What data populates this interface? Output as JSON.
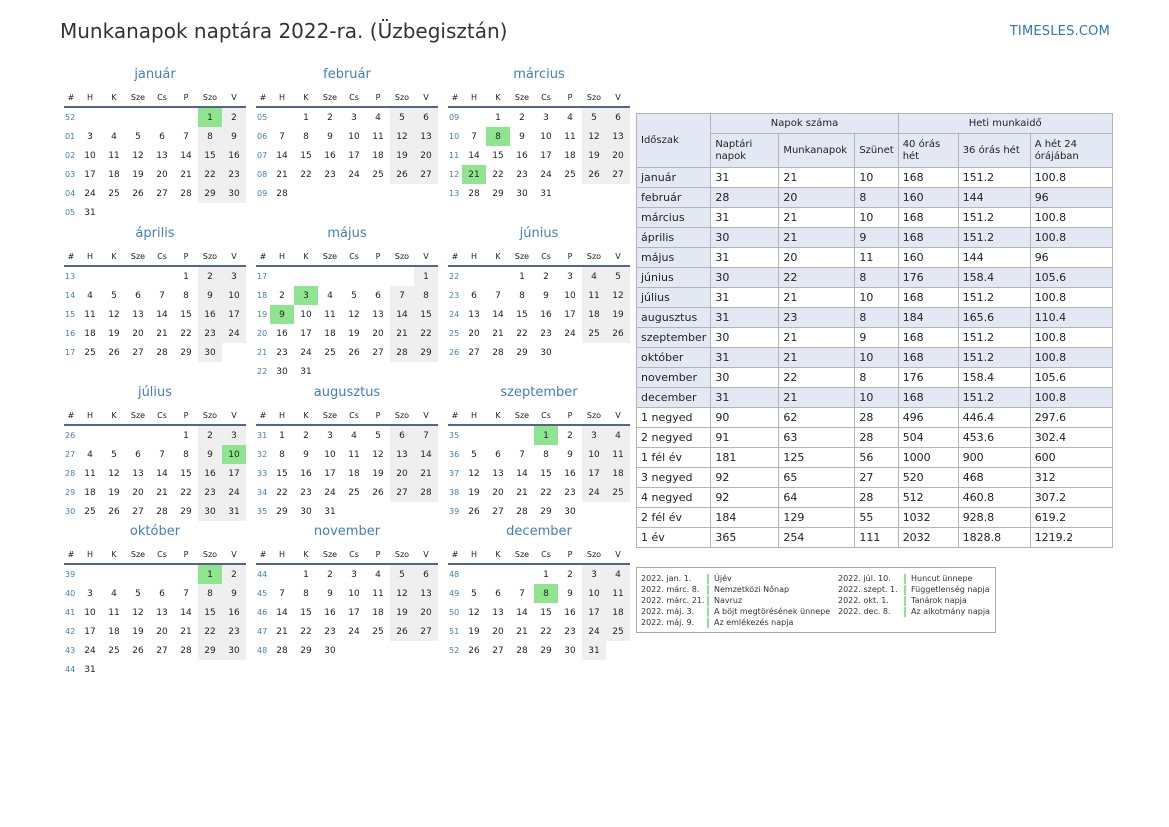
{
  "header": {
    "title": "Munkanapok naptára 2022-ra. (Üzbegisztán)",
    "brand": "TIMESLES.COM"
  },
  "weekday_headers": [
    "#",
    "H",
    "K",
    "Sze",
    "Cs",
    "P",
    "Szo",
    "V"
  ],
  "months": [
    {
      "name": "január",
      "weeks": [
        "52",
        "01",
        "02",
        "03",
        "04",
        "05"
      ],
      "first": 5,
      "days": 31,
      "holidays": [
        1
      ]
    },
    {
      "name": "február",
      "weeks": [
        "05",
        "06",
        "07",
        "08",
        "09"
      ],
      "first": 1,
      "days": 28,
      "holidays": []
    },
    {
      "name": "március",
      "weeks": [
        "09",
        "10",
        "11",
        "12",
        "13"
      ],
      "first": 1,
      "days": 31,
      "holidays": [
        8,
        21
      ]
    },
    {
      "name": "április",
      "weeks": [
        "13",
        "14",
        "15",
        "16",
        "17"
      ],
      "first": 4,
      "days": 30,
      "holidays": []
    },
    {
      "name": "május",
      "weeks": [
        "17",
        "18",
        "19",
        "20",
        "21",
        "22"
      ],
      "first": 6,
      "days": 31,
      "holidays": [
        3,
        9
      ]
    },
    {
      "name": "június",
      "weeks": [
        "22",
        "23",
        "24",
        "25",
        "26"
      ],
      "first": 2,
      "days": 30,
      "holidays": []
    },
    {
      "name": "július",
      "weeks": [
        "26",
        "27",
        "28",
        "29",
        "30"
      ],
      "first": 4,
      "days": 31,
      "holidays": [
        10
      ]
    },
    {
      "name": "augusztus",
      "weeks": [
        "31",
        "32",
        "33",
        "34",
        "35"
      ],
      "first": 0,
      "days": 31,
      "holidays": []
    },
    {
      "name": "szeptember",
      "weeks": [
        "35",
        "36",
        "37",
        "38",
        "39"
      ],
      "first": 3,
      "days": 30,
      "holidays": [
        1
      ]
    },
    {
      "name": "október",
      "weeks": [
        "39",
        "40",
        "41",
        "42",
        "43",
        "44"
      ],
      "first": 5,
      "days": 31,
      "holidays": [
        1
      ]
    },
    {
      "name": "november",
      "weeks": [
        "44",
        "45",
        "46",
        "47",
        "48"
      ],
      "first": 1,
      "days": 30,
      "holidays": []
    },
    {
      "name": "december",
      "weeks": [
        "48",
        "49",
        "50",
        "51",
        "52"
      ],
      "first": 3,
      "days": 31,
      "holidays": [
        8
      ]
    }
  ],
  "stats": {
    "period_label": "Időszak",
    "group_days": "Napok száma",
    "group_hours": "Heti munkaidő",
    "columns": [
      "Naptári napok",
      "Munkanapok",
      "Szünet",
      "40 órás hét",
      "36 órás hét",
      "A hét 24 órájában"
    ],
    "rows": [
      [
        "január",
        "31",
        "21",
        "10",
        "168",
        "151.2",
        "100.8"
      ],
      [
        "február",
        "28",
        "20",
        "8",
        "160",
        "144",
        "96"
      ],
      [
        "március",
        "31",
        "21",
        "10",
        "168",
        "151.2",
        "100.8"
      ],
      [
        "április",
        "30",
        "21",
        "9",
        "168",
        "151.2",
        "100.8"
      ],
      [
        "május",
        "31",
        "20",
        "11",
        "160",
        "144",
        "96"
      ],
      [
        "június",
        "30",
        "22",
        "8",
        "176",
        "158.4",
        "105.6"
      ],
      [
        "július",
        "31",
        "21",
        "10",
        "168",
        "151.2",
        "100.8"
      ],
      [
        "augusztus",
        "31",
        "23",
        "8",
        "184",
        "165.6",
        "110.4"
      ],
      [
        "szeptember",
        "30",
        "21",
        "9",
        "168",
        "151.2",
        "100.8"
      ],
      [
        "október",
        "31",
        "21",
        "10",
        "168",
        "151.2",
        "100.8"
      ],
      [
        "november",
        "30",
        "22",
        "8",
        "176",
        "158.4",
        "105.6"
      ],
      [
        "december",
        "31",
        "21",
        "10",
        "168",
        "151.2",
        "100.8"
      ],
      [
        "1 negyed",
        "90",
        "62",
        "28",
        "496",
        "446.4",
        "297.6"
      ],
      [
        "2 negyed",
        "91",
        "63",
        "28",
        "504",
        "453.6",
        "302.4"
      ],
      [
        "1 fél év",
        "181",
        "125",
        "56",
        "1000",
        "900",
        "600"
      ],
      [
        "3 negyed",
        "92",
        "65",
        "27",
        "520",
        "468",
        "312"
      ],
      [
        "4 negyed",
        "92",
        "64",
        "28",
        "512",
        "460.8",
        "307.2"
      ],
      [
        "2 fél év",
        "184",
        "129",
        "55",
        "1032",
        "928.8",
        "619.2"
      ],
      [
        "1 év",
        "365",
        "254",
        "111",
        "2032",
        "1828.8",
        "1219.2"
      ]
    ]
  },
  "holiday_list": [
    {
      "date": "2022. jan. 1.",
      "name": "Újév"
    },
    {
      "date": "2022. márc. 8.",
      "name": "Nemzetközi Nőnap"
    },
    {
      "date": "2022. márc. 21.",
      "name": "Navruz"
    },
    {
      "date": "2022. máj. 3.",
      "name": "A böjt megtörésének ünnepe"
    },
    {
      "date": "2022. máj. 9.",
      "name": "Az emlékezés napja"
    },
    {
      "date": "2022. júl. 10.",
      "name": "Huncut ünnepe"
    },
    {
      "date": "2022. szept. 1.",
      "name": "Függetlenség napja"
    },
    {
      "date": "2022. okt. 1.",
      "name": "Tanárok napja"
    },
    {
      "date": "2022. dec. 8.",
      "name": "Az alkotmány napja"
    }
  ]
}
